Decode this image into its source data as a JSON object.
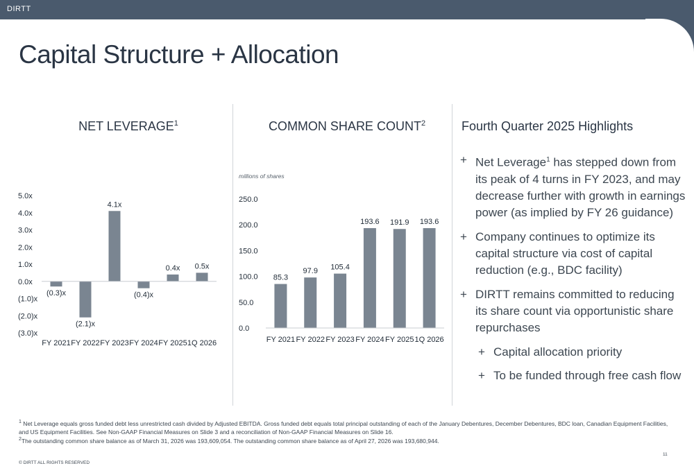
{
  "header": {
    "brand": "DIRTT"
  },
  "page_title": "Capital Structure + Allocation",
  "chart_data": [
    {
      "type": "bar",
      "title": "NET LEVERAGE",
      "title_footnote": "1",
      "categories": [
        "FY 2021",
        "FY 2022",
        "FY 2023",
        "FY 2024",
        "FY 2025",
        "1Q 2026"
      ],
      "values": [
        -0.3,
        -2.1,
        4.1,
        -0.4,
        0.4,
        0.5
      ],
      "value_labels": [
        "(0.3)x",
        "(2.1)x",
        "4.1x",
        "(0.4)x",
        "0.4x",
        "0.5x"
      ],
      "y_ticks": [
        5,
        4,
        3,
        2,
        1,
        0,
        -1,
        -2,
        -3
      ],
      "y_tick_labels": [
        "5.0x",
        "4.0x",
        "3.0x",
        "2.0x",
        "1.0x",
        "0.0x",
        "(1.0)x",
        "(2.0)x",
        "(3.0)x"
      ],
      "ylim": [
        -3,
        5
      ],
      "grid": false,
      "bar_color": "#7a8591"
    },
    {
      "type": "bar",
      "title": "COMMON SHARE COUNT",
      "title_footnote": "2",
      "ylabel": "millions of shares",
      "categories": [
        "FY 2021",
        "FY 2022",
        "FY 2023",
        "FY 2024",
        "FY 2025",
        "1Q 2026"
      ],
      "values": [
        85.3,
        97.9,
        105.4,
        193.6,
        191.9,
        193.6
      ],
      "value_labels": [
        "85.3",
        "97.9",
        "105.4",
        "193.6",
        "191.9",
        "193.6"
      ],
      "y_ticks": [
        250,
        200,
        150,
        100,
        50,
        0
      ],
      "y_tick_labels": [
        "250.0",
        "200.0",
        "150.0",
        "100.0",
        "50.0",
        "0.0"
      ],
      "ylim": [
        0,
        250
      ],
      "grid": false,
      "bar_color": "#7a8591"
    }
  ],
  "highlights": {
    "title": "Fourth Quarter 2025 Highlights",
    "plus": "+",
    "bullets": [
      {
        "pre": "Net Leverage",
        "sup": "1",
        "post": " has stepped down from its peak of 4 turns in FY 2023, and may decrease further with growth in earnings power (as implied by FY 26 guidance)"
      },
      {
        "text": "Company continues to optimize its capital structure via cost of capital reduction (e.g., BDC facility)"
      },
      {
        "text": "DIRTT remains committed to reducing its share count via opportunistic share repurchases"
      }
    ],
    "sub_bullets": [
      "Capital allocation priority",
      "To be funded through free cash flow"
    ]
  },
  "footnotes": {
    "fn1_num": "1",
    "fn1": " Net Leverage equals gross funded debt less unrestricted cash divided by Adjusted EBITDA. Gross funded debt equals total principal outstanding of each of the January Debentures, December Debentures, BDC loan, Canadian Equipment Facilities, and US Equipment Facilities. See Non-GAAP Financial Measures on Slide 3 and a reconciliation of Non-GAAP Financial Measures on Slide 16.",
    "fn2_num": "2",
    "fn2": "The outstanding common share balance as of March 31, 2026 was 193,609,054. The outstanding common share balance as of April 27, 2026 was 193,680,944."
  },
  "copyright": "© DIRTT ALL RIGHTS RESERVED",
  "page_number": "11"
}
